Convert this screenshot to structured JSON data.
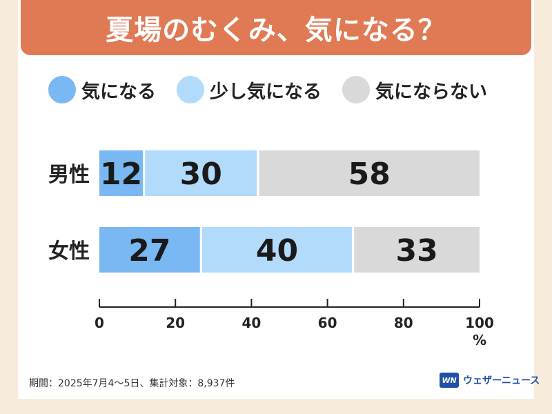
{
  "title": "夏場のむくみ、気になる？",
  "legend": [
    {
      "label": "気になる",
      "color": "#79b8f2"
    },
    {
      "label": "少し気になる",
      "color": "#b2dafb"
    },
    {
      "label": "気にならない",
      "color": "#d9d9d9"
    }
  ],
  "footnote": "期間：2025年7月4～5日、集計対象：8,937件",
  "logo": {
    "mark": "WN",
    "text": "ウェザーニュース"
  },
  "chart_data": {
    "type": "bar",
    "orientation": "horizontal",
    "stacked": true,
    "categories": [
      "男性",
      "女性"
    ],
    "series": [
      {
        "name": "気になる",
        "values": [
          12,
          27
        ],
        "color": "#79b8f2"
      },
      {
        "name": "少し気になる",
        "values": [
          30,
          40
        ],
        "color": "#b2dafb"
      },
      {
        "name": "気にならない",
        "values": [
          58,
          33
        ],
        "color": "#d9d9d9"
      }
    ],
    "xlim": [
      0,
      100
    ],
    "xticks": [
      0,
      20,
      40,
      60,
      80,
      100
    ],
    "xunit": "%",
    "grid": false,
    "legend_position": "top"
  }
}
